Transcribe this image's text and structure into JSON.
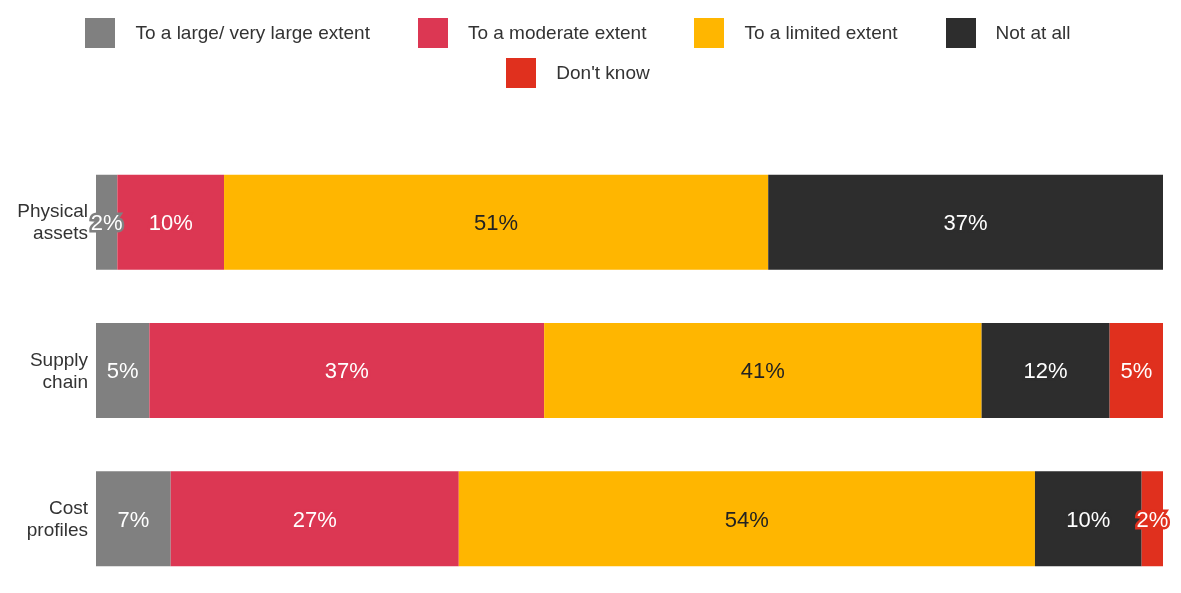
{
  "chart_data": {
    "type": "bar",
    "orientation": "horizontal",
    "stacked": true,
    "categories": [
      "Physical assets",
      "Supply chain",
      "Cost profiles"
    ],
    "series": [
      {
        "name": "To a large/ very large extent",
        "color": "#808080",
        "values": [
          2,
          5,
          7
        ],
        "value_labels": [
          "2%",
          "5%",
          "7%"
        ]
      },
      {
        "name": "To a moderate extent",
        "color": "#dc3753",
        "values": [
          10,
          37,
          27
        ],
        "value_labels": [
          "10%",
          "37%",
          "27%"
        ]
      },
      {
        "name": "To a limited extent",
        "color": "#ffb600",
        "values": [
          51,
          41,
          54
        ],
        "value_labels": [
          "51%",
          "41%",
          "54%"
        ]
      },
      {
        "name": "Not at all",
        "color": "#2d2d2d",
        "values": [
          37,
          12,
          10
        ],
        "value_labels": [
          "37%",
          "12%",
          "10%"
        ]
      },
      {
        "name": "Don't know",
        "color": "#e0301e",
        "values": [
          null,
          5,
          2
        ],
        "value_labels": [
          null,
          "5%",
          "2%"
        ]
      }
    ],
    "xlim": [
      0,
      100
    ],
    "tick_labels": "y",
    "grid": false,
    "legend": "top"
  }
}
